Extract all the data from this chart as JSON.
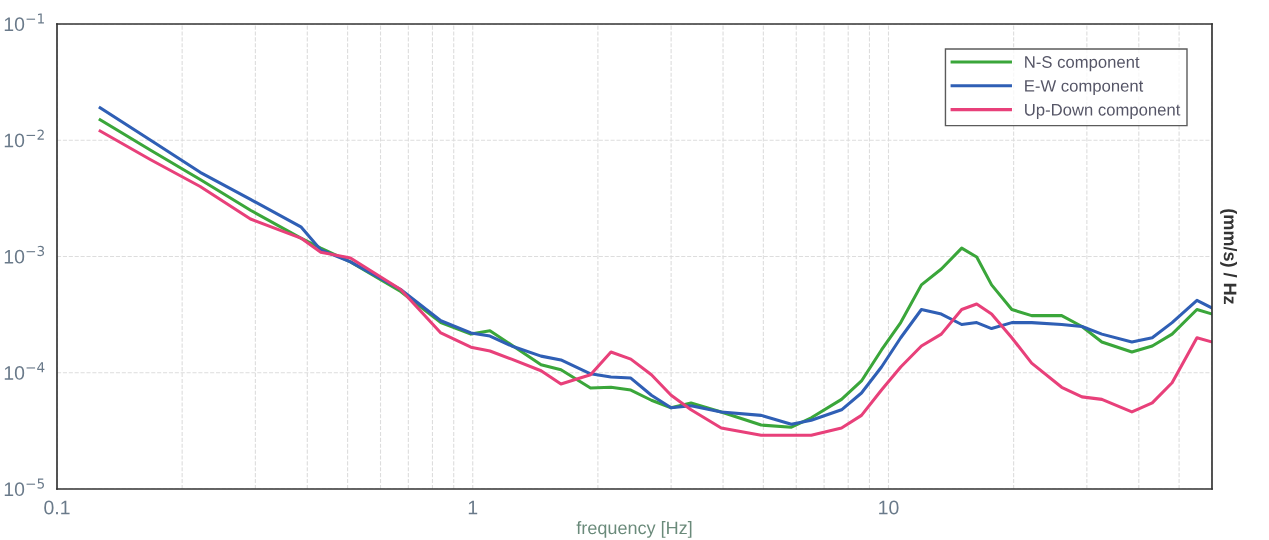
{
  "chart_data": {
    "type": "line",
    "xlabel": "frequency [Hz]",
    "ylabel": "(mm/s) / Hz",
    "log": "xy",
    "grid": true,
    "legend": "top right",
    "line_style": "solid",
    "x": [
      0.127,
      0.168,
      0.221,
      0.292,
      0.386,
      0.431,
      0.508,
      0.671,
      0.838,
      0.99,
      1.1,
      1.24,
      1.46,
      1.63,
      1.92,
      2.15,
      2.4,
      2.69,
      3.0,
      3.35,
      3.96,
      4.94,
      5.84,
      6.52,
      7.71,
      8.61,
      9.62,
      10.7,
      12.0,
      13.4,
      15.0,
      16.3,
      17.7,
      19.8,
      22.1,
      26.1,
      29.2,
      32.6,
      38.5,
      43.1,
      48.1,
      55.2,
      60.0
    ],
    "xlim": [
      0.1,
      60
    ],
    "xticks": [
      0.1,
      1,
      10
    ],
    "ylim": [
      1e-05,
      0.1
    ],
    "yticks": [
      {
        "value": 1e-05,
        "label": "10$^{−5}$"
      },
      {
        "value": 0.0001,
        "label": "10$^{−4}$"
      },
      {
        "value": 0.001,
        "label": "10$^{−3}$"
      },
      {
        "value": 0.01,
        "label": "10$^{−2}$"
      },
      {
        "value": 0.1,
        "label": "10$^{−1}$"
      }
    ],
    "series": [
      {
        "name": "N-S component",
        "color": "#3aa63a",
        "values": [
          0.015,
          0.0082,
          0.0046,
          0.0025,
          0.00144,
          0.00118,
          0.0009,
          0.0005,
          0.00027,
          0.000215,
          0.00023,
          0.000173,
          0.000117,
          0.000106,
          7.4e-05,
          7.5e-05,
          7.1e-05,
          5.8e-05,
          5e-05,
          5.5e-05,
          4.6e-05,
          3.55e-05,
          3.4e-05,
          4.1e-05,
          5.9e-05,
          8.5e-05,
          0.000157,
          0.00027,
          0.00057,
          0.00078,
          0.00118,
          0.00099,
          0.00057,
          0.00035,
          0.00031,
          0.00031,
          0.00025,
          0.000184,
          0.000151,
          0.00017,
          0.000215,
          0.00035,
          0.00032
        ]
      },
      {
        "name": "E-W component",
        "color": "#2f5fb5",
        "values": [
          0.019,
          0.01,
          0.0053,
          0.0031,
          0.0018,
          0.00114,
          0.0009,
          0.00052,
          0.00028,
          0.00022,
          0.000207,
          0.00017,
          0.000139,
          0.000129,
          9.8e-05,
          9.2e-05,
          9e-05,
          6.4e-05,
          5e-05,
          5.2e-05,
          4.6e-05,
          4.3e-05,
          3.6e-05,
          3.9e-05,
          4.8e-05,
          6.7e-05,
          0.000112,
          0.0002,
          0.00035,
          0.00032,
          0.00026,
          0.00027,
          0.00024,
          0.00027,
          0.00027,
          0.00026,
          0.00025,
          0.000215,
          0.000184,
          0.0002,
          0.00027,
          0.00042,
          0.00036
        ]
      },
      {
        "name": "Up-Down component",
        "color": "#e8407a",
        "values": [
          0.012,
          0.0068,
          0.004,
          0.0021,
          0.00144,
          0.00109,
          0.00097,
          0.00052,
          0.00022,
          0.000166,
          0.000154,
          0.000131,
          0.000104,
          8e-05,
          9.6e-05,
          0.000151,
          0.000131,
          9.6e-05,
          6.4e-05,
          4.8e-05,
          3.35e-05,
          2.9e-05,
          2.9e-05,
          2.9e-05,
          3.35e-05,
          4.3e-05,
          7.1e-05,
          0.000112,
          0.00017,
          0.000215,
          0.00035,
          0.00039,
          0.00032,
          0.0002,
          0.000121,
          7.5e-05,
          6.2e-05,
          5.9e-05,
          4.6e-05,
          5.5e-05,
          8.2e-05,
          0.0002,
          0.000184
        ]
      }
    ]
  }
}
